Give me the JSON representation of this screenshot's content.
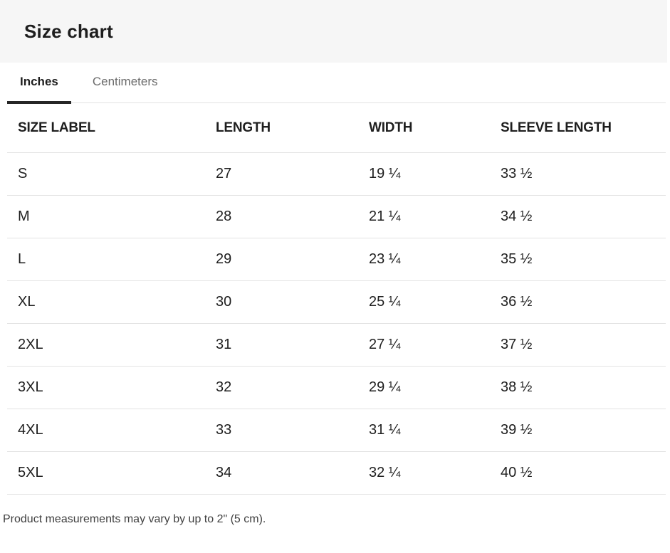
{
  "header": {
    "title": "Size chart"
  },
  "tabs": [
    {
      "label": "Inches",
      "active": true
    },
    {
      "label": "Centimeters",
      "active": false
    }
  ],
  "table": {
    "headers": [
      "SIZE LABEL",
      "LENGTH",
      "WIDTH",
      "SLEEVE LENGTH"
    ],
    "rows": [
      {
        "size": "S",
        "length": "27",
        "width": "19 ¼",
        "sleeve_length": "33 ½"
      },
      {
        "size": "M",
        "length": "28",
        "width": "21 ¼",
        "sleeve_length": "34 ½"
      },
      {
        "size": "L",
        "length": "29",
        "width": "23 ¼",
        "sleeve_length": "35 ½"
      },
      {
        "size": "XL",
        "length": "30",
        "width": "25 ¼",
        "sleeve_length": "36 ½"
      },
      {
        "size": "2XL",
        "length": "31",
        "width": "27 ¼",
        "sleeve_length": "37 ½"
      },
      {
        "size": "3XL",
        "length": "32",
        "width": "29 ¼",
        "sleeve_length": "38 ½"
      },
      {
        "size": "4XL",
        "length": "33",
        "width": "31 ¼",
        "sleeve_length": "39 ½"
      },
      {
        "size": "5XL",
        "length": "34",
        "width": "32 ¼",
        "sleeve_length": "40 ½"
      }
    ]
  },
  "footer": {
    "note": "Product measurements may vary by up to 2\" (5 cm)."
  },
  "colors": {
    "header_bg": "#f6f6f6",
    "text_primary": "#1e1e1e",
    "tab_inactive": "#6b6b6b",
    "border": "#e3e3e3",
    "active_tab_underline": "#262626",
    "footer_text": "#404040",
    "page_bg": "#ffffff"
  }
}
